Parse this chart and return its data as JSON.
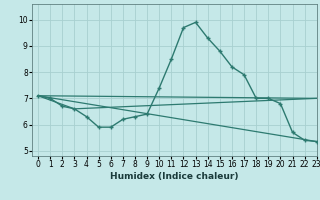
{
  "title": "",
  "xlabel": "Humidex (Indice chaleur)",
  "background_color": "#c5e8e8",
  "line_color": "#2d7a70",
  "grid_color": "#a8d0d0",
  "xlim": [
    -0.5,
    23
  ],
  "ylim": [
    4.8,
    10.6
  ],
  "x_ticks": [
    0,
    1,
    2,
    3,
    4,
    5,
    6,
    7,
    8,
    9,
    10,
    11,
    12,
    13,
    14,
    15,
    16,
    17,
    18,
    19,
    20,
    21,
    22,
    23
  ],
  "y_ticks": [
    5,
    6,
    7,
    8,
    9,
    10
  ],
  "tick_fontsize": 5.5,
  "xlabel_fontsize": 6.5,
  "series": [
    {
      "x": [
        0,
        1,
        2,
        3,
        4,
        5,
        6,
        7,
        8,
        9,
        10,
        11,
        12,
        13,
        14,
        15,
        16,
        17,
        18,
        19,
        20,
        21,
        22,
        23
      ],
      "y": [
        7.1,
        7.0,
        6.7,
        6.6,
        6.3,
        5.9,
        5.9,
        6.2,
        6.3,
        6.4,
        7.4,
        8.5,
        9.7,
        9.9,
        9.3,
        8.8,
        8.2,
        7.9,
        7.0,
        7.0,
        6.8,
        5.7,
        5.4,
        5.35
      ],
      "has_markers": true
    },
    {
      "x": [
        0,
        23
      ],
      "y": [
        7.1,
        7.0
      ],
      "has_markers": false
    },
    {
      "x": [
        0,
        23
      ],
      "y": [
        7.1,
        5.35
      ],
      "has_markers": false
    },
    {
      "x": [
        0,
        3,
        23
      ],
      "y": [
        7.1,
        6.6,
        7.0
      ],
      "has_markers": false
    }
  ]
}
